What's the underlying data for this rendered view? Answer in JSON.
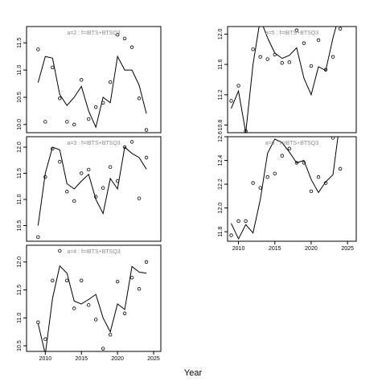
{
  "xlabel": "Year",
  "chart_data": [
    {
      "type": "line",
      "title": "a=2  :  f=IBTS+BTSQ3",
      "x": [
        2009,
        2010,
        2011,
        2012,
        2013,
        2014,
        2015,
        2016,
        2017,
        2018,
        2019,
        2020,
        2021,
        2022,
        2023,
        2024
      ],
      "xlim": [
        2007.4,
        2026
      ],
      "ylim": [
        9.85,
        11.8
      ],
      "yticks": [
        {
          "value": 10,
          "label": "10.0"
        },
        10.5,
        {
          "value": 11,
          "label": "11.0"
        },
        11.5
      ],
      "series": [
        {
          "marker": "circle",
          "color": "#000000",
          "values": [
            11.38,
            10.05,
            11.05,
            10.48,
            10.05,
            10.0,
            10.82,
            10.1,
            10.32,
            10.4,
            10.78,
            11.65,
            11.58,
            11.42,
            10.48,
            9.9
          ]
        },
        {
          "marker": "none",
          "color": "#000000",
          "values": [
            10.77,
            11.25,
            11.22,
            10.55,
            10.35,
            10.5,
            10.7,
            10.25,
            9.95,
            10.5,
            10.4,
            11.25,
            11.0,
            11.0,
            10.72,
            10.2
          ]
        }
      ]
    },
    {
      "type": "line",
      "title": "a=3  :  f=IBTS+BTSQ3",
      "x": [
        2009,
        2010,
        2011,
        2012,
        2013,
        2014,
        2015,
        2016,
        2017,
        2018,
        2019,
        2020,
        2021,
        2022,
        2023,
        2024
      ],
      "xlim": [
        2007.4,
        2026
      ],
      "ylim": [
        10.2,
        12.2
      ],
      "yticks": [
        10.5,
        {
          "value": 11,
          "label": "11.0"
        },
        11.5,
        {
          "value": 12,
          "label": "12.0"
        }
      ],
      "series": [
        {
          "marker": "circle",
          "color": "#000000",
          "values": [
            10.28,
            11.43,
            11.97,
            11.72,
            11.15,
            10.97,
            11.5,
            11.57,
            11.05,
            11.22,
            11.62,
            11.35,
            12.0,
            12.1,
            11.02,
            11.8
          ]
        },
        {
          "marker": "none",
          "color": "#000000",
          "values": [
            10.5,
            11.5,
            12.0,
            11.95,
            11.3,
            11.2,
            11.35,
            11.48,
            11.0,
            10.73,
            11.4,
            11.2,
            12.0,
            11.88,
            11.8,
            11.58
          ]
        }
      ]
    },
    {
      "type": "line",
      "title": "a=4  :  f=IBTS+BTSQ3",
      "x": [
        2009,
        2010,
        2011,
        2012,
        2013,
        2014,
        2015,
        2016,
        2017,
        2018,
        2019,
        2020,
        2021,
        2022,
        2023,
        2024
      ],
      "xlim": [
        2007.4,
        2026
      ],
      "xticks": [
        2010,
        2015,
        2020,
        2025
      ],
      "ylim": [
        10.4,
        12.3
      ],
      "yticks": [
        10.5,
        {
          "value": 11,
          "label": "11.0"
        },
        11.5,
        {
          "value": 12,
          "label": "12.0"
        }
      ],
      "series": [
        {
          "marker": "circle",
          "color": "#000000",
          "values": [
            10.92,
            10.62,
            11.67,
            12.2,
            11.67,
            11.17,
            11.67,
            11.23,
            10.97,
            10.45,
            10.7,
            11.65,
            11.08,
            11.72,
            11.52,
            12.0
          ]
        },
        {
          "marker": "none",
          "color": "#000000",
          "values": [
            10.9,
            10.35,
            11.35,
            11.93,
            11.8,
            11.3,
            11.25,
            11.33,
            11.42,
            11.0,
            10.75,
            11.25,
            11.15,
            11.92,
            11.82,
            11.8
          ]
        }
      ]
    },
    {
      "type": "line",
      "title": "a=5  :  f=IBTS+BTSQ3",
      "x": [
        2009,
        2010,
        2011,
        2012,
        2013,
        2014,
        2015,
        2016,
        2017,
        2018,
        2019,
        2020,
        2021,
        2022,
        2023,
        2024
      ],
      "xlim": [
        2008.5,
        2026.2
      ],
      "ylim": [
        10.7,
        12.1
      ],
      "yticks": [
        10.8,
        11.2,
        11.6,
        {
          "value": 12,
          "label": "12.0"
        }
      ],
      "series": [
        {
          "marker": "circle",
          "color": "#000000",
          "values": [
            11.12,
            11.32,
            10.72,
            11.8,
            11.7,
            11.67,
            11.73,
            11.62,
            11.63,
            12.05,
            11.88,
            11.58,
            11.92,
            11.53,
            11.7,
            12.07
          ]
        },
        {
          "marker": "none",
          "color": "#000000",
          "values": [
            11.02,
            11.25,
            10.7,
            11.6,
            12.2,
            11.95,
            11.75,
            11.68,
            11.72,
            11.82,
            11.42,
            11.2,
            11.57,
            11.52,
            11.95,
            12.3
          ]
        }
      ]
    },
    {
      "type": "line",
      "title": "a=6  :  f=IBTS+BTSQ3",
      "x": [
        2009,
        2010,
        2011,
        2012,
        2013,
        2014,
        2015,
        2016,
        2017,
        2018,
        2019,
        2020,
        2021,
        2022,
        2023,
        2024
      ],
      "xlim": [
        2008.5,
        2026.2
      ],
      "xticks": [
        2010,
        2015,
        2020,
        2025
      ],
      "ylim": [
        11.72,
        12.6
      ],
      "yticks": [
        11.8,
        {
          "value": 12,
          "label": "12.0"
        },
        12.2,
        12.4,
        12.6
      ],
      "series": [
        {
          "marker": "circle",
          "color": "#000000",
          "values": [
            11.77,
            11.89,
            11.89,
            12.21,
            12.17,
            12.26,
            12.29,
            12.44,
            12.5,
            12.38,
            12.38,
            12.14,
            12.26,
            12.21,
            12.59,
            12.33
          ]
        },
        {
          "marker": "none",
          "color": "#000000",
          "values": [
            11.87,
            11.74,
            11.86,
            11.79,
            12.07,
            12.46,
            12.58,
            12.55,
            12.47,
            12.38,
            12.4,
            12.24,
            12.13,
            12.22,
            12.28,
            12.75
          ]
        }
      ]
    }
  ]
}
